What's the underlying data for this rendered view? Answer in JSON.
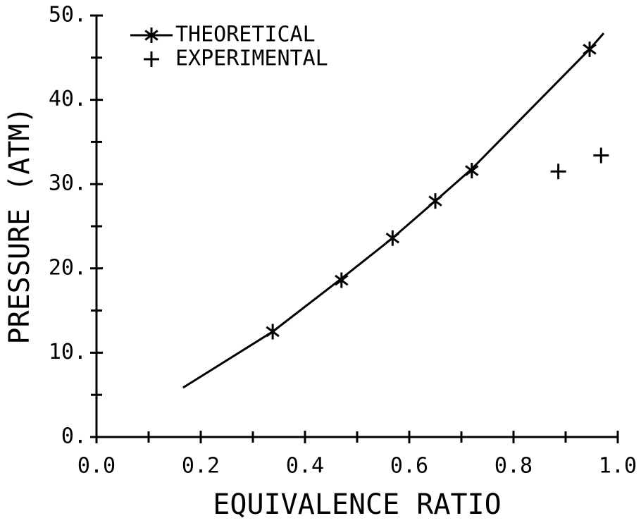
{
  "chart_data": {
    "type": "scatter",
    "x_label": "EQUIVALENCE RATIO",
    "y_label": "PRESSURE (ATM)",
    "xlim": [
      0,
      1
    ],
    "ylim": [
      0,
      50
    ],
    "xticks": [
      {
        "value": 0,
        "label": "0.0"
      },
      0.2,
      0.4,
      0.6,
      0.8,
      {
        "value": 1,
        "label": "1.0"
      }
    ],
    "yticks": [
      {
        "value": 0,
        "label": "0."
      },
      {
        "value": 10,
        "label": "10."
      },
      {
        "value": 20,
        "label": "20."
      },
      {
        "value": 30,
        "label": "30."
      },
      {
        "value": 40,
        "label": "40."
      },
      {
        "value": 50,
        "label": "50."
      }
    ],
    "x_minor_ticks": [
      0.1,
      0.3,
      0.5,
      0.7,
      0.9
    ],
    "y_minor_ticks": [
      5,
      15,
      25,
      35,
      45
    ],
    "legend": "upper left",
    "color": "#000000",
    "series": [
      {
        "name": "THEORETICAL",
        "marker": "asterisk",
        "x": [
          0.338,
          0.47,
          0.568,
          0.65,
          0.72,
          0.946
        ],
        "values": [
          12.5,
          18.6,
          23.6,
          28.0,
          31.6,
          46.0
        ],
        "line_x": [
          0.166,
          0.338,
          0.47,
          0.568,
          0.65,
          0.72,
          0.946,
          0.973
        ],
        "line_values": [
          5.85,
          12.5,
          18.8,
          23.6,
          28.0,
          31.8,
          46.0,
          47.9
        ]
      },
      {
        "name": "EXPERIMENTAL",
        "marker": "plus",
        "x": [
          0.886,
          0.968
        ],
        "values": [
          31.5,
          33.4
        ]
      }
    ]
  }
}
